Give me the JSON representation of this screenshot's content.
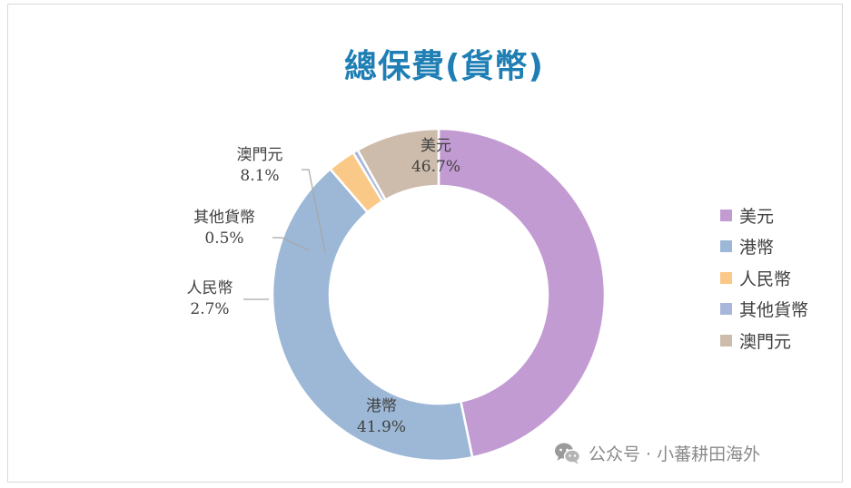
{
  "chart_data": {
    "type": "pie",
    "title": "總保費(貨幣)",
    "categories": [
      "美元",
      "港幣",
      "人民幣",
      "其他貨幣",
      "澳門元"
    ],
    "values": [
      46.7,
      41.9,
      2.7,
      0.5,
      8.1
    ],
    "value_labels": [
      "46.7%",
      "41.9%",
      "2.7%",
      "0.5%",
      "8.1%"
    ],
    "colors": [
      "#c39bd3",
      "#9db8d6",
      "#fbc987",
      "#a9b6dc",
      "#cdbcac"
    ],
    "legend_position": "right",
    "donut": true
  },
  "watermark": {
    "icon": "wechat-icon",
    "text": "公众号 · 小蕃耕田海外"
  }
}
